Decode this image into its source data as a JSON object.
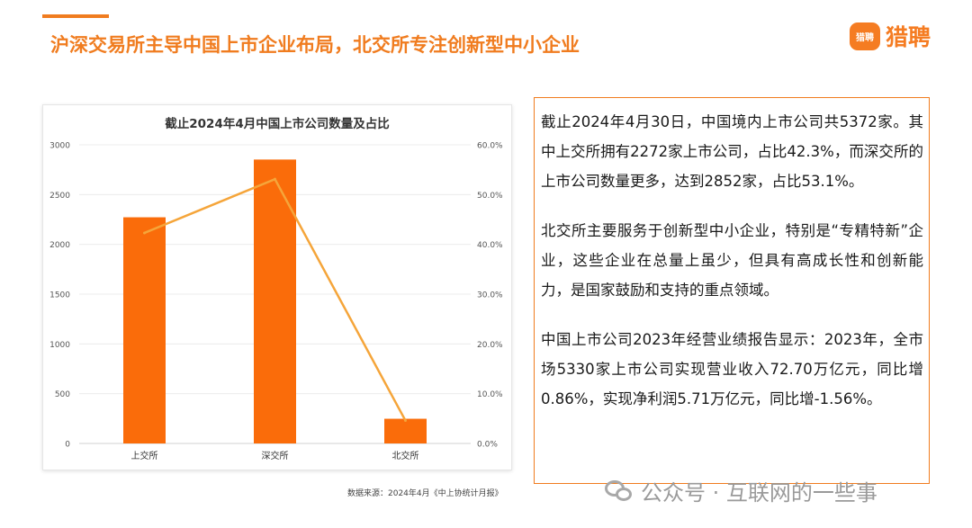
{
  "header": {
    "title": "沪深交易所主导中国上市企业布局，北交所专注创新型中小企业"
  },
  "logo": {
    "badge_text": "猎聘",
    "name": "猎聘"
  },
  "chart_data": {
    "type": "bar",
    "title": "截止2024年4月中国上市公司数量及占比",
    "categories": [
      "上交所",
      "深交所",
      "北交所"
    ],
    "series": [
      {
        "type": "bar",
        "values": [
          2272,
          2852,
          248
        ]
      },
      {
        "type": "line",
        "axis": "right",
        "values": [
          42.3,
          53.1,
          4.6
        ]
      }
    ],
    "ylim": [
      0,
      3000
    ],
    "y_ticks": [
      "0",
      "500",
      "1000",
      "1500",
      "2000",
      "2500",
      "3000"
    ],
    "y2lim": [
      0,
      60
    ],
    "y2_ticks": [
      "0.0%",
      "10.0%",
      "20.0%",
      "30.0%",
      "40.0%",
      "50.0%",
      "60.0%"
    ],
    "grid": true,
    "colors": {
      "bar": "#fa6c0a",
      "line": "#f5a53a"
    }
  },
  "source": "数据来源：2024年4月《中上协统计月报》",
  "text_box": {
    "paragraphs": [
      "截止2024年4月30日，中国境内上市公司共5372家。其中上交所拥有2272家上市公司，占比42.3%，而深交所的上市公司数量更多，达到2852家，占比53.1%。",
      "北交所主要服务于创新型中小企业，特别是“专精特新”企业，这些企业在总量上虽少，但具有高成长性和创新能力，是国家鼓励和支持的重点领域。",
      "中国上市公司2023年经营业绩报告显示：2023年，全市场5330家上市公司实现营业收入72.70万亿元，同比增0.86%，实现净利润5.71万亿元，同比增-1.56%。"
    ]
  },
  "watermark": "公众号 · 互联网的一些事"
}
